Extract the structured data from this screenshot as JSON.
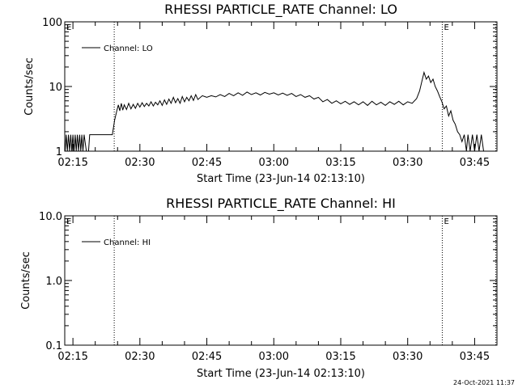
{
  "footer": {
    "timestamp": "24-Oct-2021 11:37"
  },
  "chart_data": [
    {
      "type": "line",
      "title": "RHESSI PARTICLE_RATE Channel: LO",
      "xlabel": "Start Time (23-Jun-14 02:13:10)",
      "ylabel": "Counts/sec",
      "yscale": "log",
      "xlim": [
        "02:13:10",
        "03:50:00"
      ],
      "ylim": [
        1,
        100
      ],
      "xticks": [
        "02:15",
        "02:30",
        "02:45",
        "03:00",
        "03:15",
        "03:30",
        "03:45"
      ],
      "yticks": [
        "1",
        "10",
        "100"
      ],
      "legend_placement": "top-left",
      "markers": [
        {
          "label": "E",
          "x": "02:13:10"
        },
        {
          "label": "",
          "x": "02:24:15"
        },
        {
          "label": "E",
          "x": "03:37:45"
        },
        {
          "label": "",
          "x": "03:49:45"
        }
      ],
      "series": [
        {
          "name": "Channel: LO",
          "color": "#000000",
          "points": [
            [
              "02:13:15",
              1
            ],
            [
              "02:13:30",
              1.8
            ],
            [
              "02:13:45",
              1
            ],
            [
              "02:14:00",
              1.8
            ],
            [
              "02:14:15",
              1
            ],
            [
              "02:14:30",
              1.8
            ],
            [
              "02:14:45",
              1
            ],
            [
              "02:15:00",
              1.8
            ],
            [
              "02:15:15",
              1
            ],
            [
              "02:15:30",
              1.8
            ],
            [
              "02:15:45",
              1
            ],
            [
              "02:16:00",
              1.8
            ],
            [
              "02:16:15",
              1
            ],
            [
              "02:16:30",
              1.8
            ],
            [
              "02:16:45",
              1
            ],
            [
              "02:17:00",
              1.8
            ],
            [
              "02:17:15",
              1
            ],
            [
              "02:17:30",
              1.8
            ],
            [
              "02:18:00",
              1
            ],
            [
              "02:18:30",
              1
            ],
            [
              "02:18:45",
              1.8
            ],
            [
              "02:23:50",
              1.8
            ],
            [
              "02:24:20",
              3
            ],
            [
              "02:24:50",
              4.2
            ],
            [
              "02:25:10",
              5.2
            ],
            [
              "02:25:30",
              4.2
            ],
            [
              "02:25:50",
              5.5
            ],
            [
              "02:26:10",
              4.3
            ],
            [
              "02:26:30",
              5.2
            ],
            [
              "02:27:00",
              4.4
            ],
            [
              "02:27:30",
              5.5
            ],
            [
              "02:28:00",
              4.5
            ],
            [
              "02:28:30",
              5.3
            ],
            [
              "02:29:00",
              4.6
            ],
            [
              "02:29:30",
              5.5
            ],
            [
              "02:30:00",
              4.8
            ],
            [
              "02:30:30",
              5.6
            ],
            [
              "02:31:00",
              4.9
            ],
            [
              "02:31:30",
              5.5
            ],
            [
              "02:32:00",
              5.0
            ],
            [
              "02:32:30",
              5.8
            ],
            [
              "02:33:00",
              5.0
            ],
            [
              "02:33:30",
              5.7
            ],
            [
              "02:34:00",
              5.2
            ],
            [
              "02:34:30",
              6.0
            ],
            [
              "02:35:00",
              5.1
            ],
            [
              "02:35:30",
              6.2
            ],
            [
              "02:36:00",
              5.3
            ],
            [
              "02:36:30",
              6.4
            ],
            [
              "02:37:00",
              5.5
            ],
            [
              "02:37:30",
              6.8
            ],
            [
              "02:38:00",
              5.6
            ],
            [
              "02:38:30",
              6.5
            ],
            [
              "02:39:00",
              5.5
            ],
            [
              "02:39:30",
              7.0
            ],
            [
              "02:40:00",
              5.8
            ],
            [
              "02:40:30",
              6.8
            ],
            [
              "02:41:00",
              6.0
            ],
            [
              "02:41:30",
              7.2
            ],
            [
              "02:42:00",
              6.1
            ],
            [
              "02:42:30",
              7.5
            ],
            [
              "02:43:00",
              6.3
            ],
            [
              "02:44:00",
              7.2
            ],
            [
              "02:45:00",
              6.8
            ],
            [
              "02:46:00",
              7.2
            ],
            [
              "02:47:00",
              6.9
            ],
            [
              "02:48:00",
              7.5
            ],
            [
              "02:49:00",
              7.0
            ],
            [
              "02:50:00",
              7.8
            ],
            [
              "02:51:00",
              7.2
            ],
            [
              "02:52:00",
              8.0
            ],
            [
              "02:53:00",
              7.3
            ],
            [
              "02:54:00",
              8.2
            ],
            [
              "02:55:00",
              7.5
            ],
            [
              "02:56:00",
              8.0
            ],
            [
              "02:57:00",
              7.4
            ],
            [
              "02:58:00",
              8.1
            ],
            [
              "02:59:00",
              7.6
            ],
            [
              "03:00:00",
              8.0
            ],
            [
              "03:01:00",
              7.4
            ],
            [
              "03:02:00",
              7.9
            ],
            [
              "03:03:00",
              7.3
            ],
            [
              "03:04:00",
              7.8
            ],
            [
              "03:05:00",
              7.0
            ],
            [
              "03:06:00",
              7.5
            ],
            [
              "03:07:00",
              6.8
            ],
            [
              "03:08:00",
              7.2
            ],
            [
              "03:09:00",
              6.4
            ],
            [
              "03:10:00",
              6.8
            ],
            [
              "03:11:00",
              5.8
            ],
            [
              "03:12:00",
              6.3
            ],
            [
              "03:13:00",
              5.5
            ],
            [
              "03:14:00",
              6.0
            ],
            [
              "03:15:00",
              5.4
            ],
            [
              "03:16:00",
              5.9
            ],
            [
              "03:17:00",
              5.3
            ],
            [
              "03:18:00",
              5.8
            ],
            [
              "03:19:00",
              5.2
            ],
            [
              "03:20:00",
              5.8
            ],
            [
              "03:21:00",
              5.1
            ],
            [
              "03:22:00",
              5.9
            ],
            [
              "03:23:00",
              5.2
            ],
            [
              "03:24:00",
              5.7
            ],
            [
              "03:25:00",
              5.1
            ],
            [
              "03:26:00",
              5.8
            ],
            [
              "03:27:00",
              5.3
            ],
            [
              "03:28:00",
              5.9
            ],
            [
              "03:29:00",
              5.2
            ],
            [
              "03:30:00",
              5.8
            ],
            [
              "03:31:00",
              5.5
            ],
            [
              "03:32:00",
              6.5
            ],
            [
              "03:32:40",
              8.5
            ],
            [
              "03:33:10",
              12
            ],
            [
              "03:33:40",
              16.5
            ],
            [
              "03:34:10",
              13
            ],
            [
              "03:34:40",
              14.5
            ],
            [
              "03:35:10",
              11.5
            ],
            [
              "03:35:40",
              13
            ],
            [
              "03:36:10",
              10
            ],
            [
              "03:36:40",
              8.5
            ],
            [
              "03:37:10",
              7
            ],
            [
              "03:37:40",
              5.8
            ],
            [
              "03:38:10",
              4.5
            ],
            [
              "03:38:40",
              5.0
            ],
            [
              "03:39:10",
              3.5
            ],
            [
              "03:39:40",
              4.2
            ],
            [
              "03:40:10",
              3.0
            ],
            [
              "03:40:40",
              2.6
            ],
            [
              "03:41:10",
              2.0
            ],
            [
              "03:41:40",
              1.8
            ],
            [
              "03:42:10",
              1.4
            ],
            [
              "03:42:40",
              1.8
            ],
            [
              "03:43:10",
              1
            ],
            [
              "03:43:30",
              1.8
            ],
            [
              "03:44:00",
              1
            ],
            [
              "03:44:30",
              1.8
            ],
            [
              "03:45:00",
              1
            ],
            [
              "03:45:30",
              1.8
            ],
            [
              "03:46:00",
              1
            ],
            [
              "03:46:30",
              1.8
            ],
            [
              "03:47:00",
              1
            ]
          ]
        }
      ]
    },
    {
      "type": "line",
      "title": "RHESSI PARTICLE_RATE Channel: HI",
      "xlabel": "Start Time (23-Jun-14 02:13:10)",
      "ylabel": "Counts/sec",
      "yscale": "log",
      "xlim": [
        "02:13:10",
        "03:50:00"
      ],
      "ylim": [
        0.1,
        10
      ],
      "xticks": [
        "02:15",
        "02:30",
        "02:45",
        "03:00",
        "03:15",
        "03:30",
        "03:45"
      ],
      "yticks": [
        "0.1",
        "1.0",
        "10.0"
      ],
      "legend_placement": "top-left",
      "markers": [
        {
          "label": "E",
          "x": "02:13:10"
        },
        {
          "label": "",
          "x": "02:24:15"
        },
        {
          "label": "E",
          "x": "03:37:45"
        },
        {
          "label": "",
          "x": "03:49:45"
        }
      ],
      "series": [
        {
          "name": "Channel: HI",
          "color": "#000000",
          "points": []
        }
      ]
    }
  ]
}
